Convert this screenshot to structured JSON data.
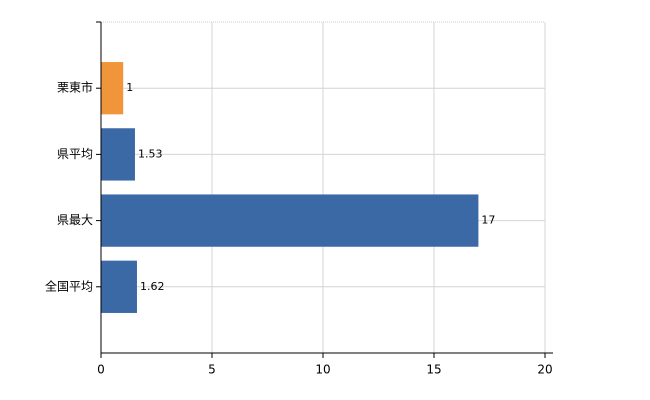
{
  "chart_data": {
    "type": "hbar",
    "categories": [
      "栗東市",
      "県平均",
      "県最大",
      "全国平均"
    ],
    "values": [
      1,
      1.53,
      17,
      1.62
    ],
    "colors": [
      "#f0953a",
      "#3b69a6",
      "#3b69a6",
      "#3b69a6"
    ],
    "xlim": [
      0,
      20
    ],
    "xticks": [
      0,
      5,
      10,
      15,
      20
    ],
    "grid": true
  }
}
